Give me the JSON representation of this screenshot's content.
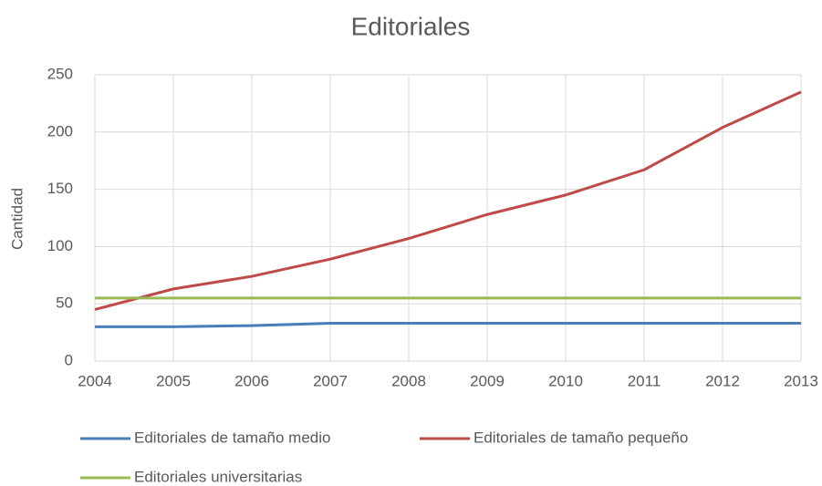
{
  "chart_data": {
    "type": "line",
    "title": "Editoriales",
    "y_label": "Cantidad",
    "x": [
      2004,
      2005,
      2006,
      2007,
      2008,
      2009,
      2010,
      2011,
      2012,
      2013
    ],
    "series": [
      {
        "name": "Editoriales de tamaño medio",
        "color": "#4a7ebb",
        "values": [
          30,
          30,
          31,
          33,
          33,
          33,
          33,
          33,
          33,
          33
        ]
      },
      {
        "name": "Editoriales de tamaño pequeño",
        "color": "#be4b48",
        "values": [
          45,
          63,
          74,
          89,
          107,
          128,
          145,
          167,
          204,
          235
        ]
      },
      {
        "name": "Editoriales universitarias",
        "color": "#98b954",
        "values": [
          55,
          55,
          55,
          55,
          55,
          55,
          55,
          55,
          55,
          55
        ]
      }
    ],
    "xlim": [
      2004,
      2013
    ],
    "xticks": [
      2004,
      2005,
      2006,
      2007,
      2008,
      2009,
      2010,
      2011,
      2012,
      2013
    ],
    "ylim": [
      0,
      250
    ],
    "yticks": [
      0,
      50,
      100,
      150,
      200,
      250
    ],
    "grid": true,
    "legend": "bottom"
  }
}
